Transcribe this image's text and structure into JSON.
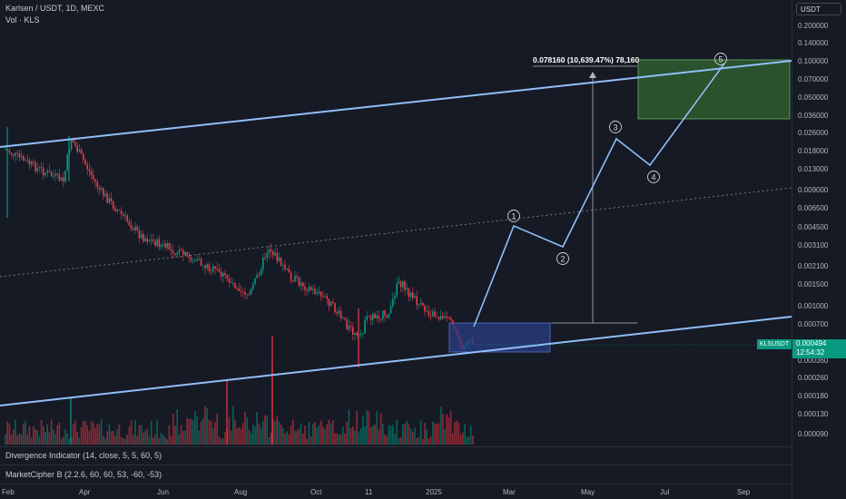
{
  "header": {
    "symbol_line": "Karlsen / USDT, 1D, MEXC",
    "volume_label": "Vol · KLS"
  },
  "indicators": [
    {
      "label": "Divergence Indicator (14, close, 5, 5, 60, 5)"
    },
    {
      "label": "MarketCipher B (2.2.6, 60, 60, 53, -60, -53)"
    }
  ],
  "price_axis": {
    "currency": "USDT",
    "labels": [
      "0.200000",
      "0.140000",
      "0.100000",
      "0.070000",
      "0.050000",
      "0.036000",
      "0.026000",
      "0.018000",
      "0.013000",
      "0.009000",
      "0.006500",
      "0.004500",
      "0.003100",
      "0.002100",
      "0.001500",
      "0.001000",
      "0.000700",
      "0.000360",
      "0.000260",
      "0.000180",
      "0.000130",
      "0.000090"
    ]
  },
  "current_price": {
    "symbol": "KLSUSDT",
    "price": "0.000494",
    "countdown": "12:54:32"
  },
  "time_axis": {
    "labels": [
      "Feb",
      "Apr",
      "Jun",
      "Aug",
      "Oct",
      "11",
      "2025",
      "Mar",
      "May",
      "Jul",
      "Sep"
    ]
  },
  "measure": {
    "text": "0.078160 (10,639.47%) 78,160"
  },
  "waves": {
    "labels": [
      "1",
      "2",
      "3",
      "4",
      "5"
    ]
  },
  "colors": {
    "background": "#161a25",
    "channel_line": "#90bff9",
    "candle_up": "#089981",
    "candle_down": "#f23645",
    "target_box": "#2e5d2e",
    "entry_box": "#2a3d85"
  }
}
